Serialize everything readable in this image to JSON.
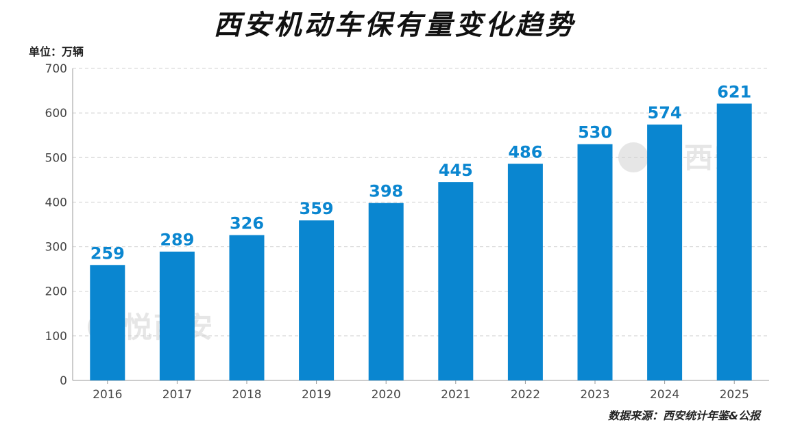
{
  "title": "西安机动车保有量变化趋势",
  "unit_label": "单位：万辆",
  "source": "数据来源：西安统计年鉴&公报",
  "watermark": "悦西安",
  "colors": {
    "bar": "#0a86d0",
    "value_label": "#0a86d0",
    "grid": "#d0d0d0",
    "axis": "#999999",
    "tick_text": "#444444"
  },
  "chart_data": {
    "type": "bar",
    "title": "西安机动车保有量变化趋势",
    "xlabel": "",
    "ylabel": "单位：万辆",
    "categories": [
      "2016",
      "2017",
      "2018",
      "2019",
      "2020",
      "2021",
      "2022",
      "2023",
      "2024",
      "2025"
    ],
    "values": [
      259,
      289,
      326,
      359,
      398,
      445,
      486,
      530,
      574,
      621
    ],
    "ylim": [
      0,
      700
    ],
    "yticks": [
      0,
      100,
      200,
      300,
      400,
      500,
      600,
      700
    ],
    "grid": true,
    "grid_style": "dashed",
    "data_labels": true
  }
}
